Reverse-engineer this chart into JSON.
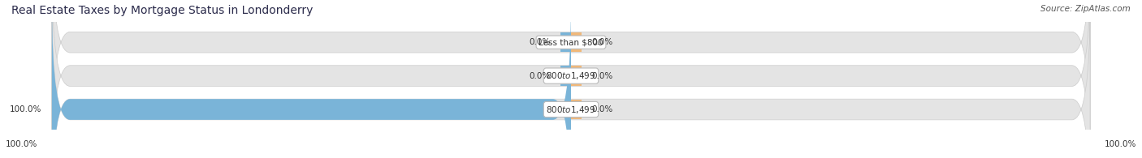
{
  "title": "Real Estate Taxes by Mortgage Status in Londonderry",
  "source": "Source: ZipAtlas.com",
  "categories": [
    "Less than $800",
    "$800 to $1,499",
    "$800 to $1,499"
  ],
  "without_mortgage": [
    0.0,
    0.0,
    100.0
  ],
  "with_mortgage": [
    0.0,
    0.0,
    0.0
  ],
  "color_without": "#7ab4d8",
  "color_with": "#f0b87a",
  "bar_bg_color": "#e4e4e4",
  "bar_height": 0.62,
  "figsize": [
    14.06,
    1.95
  ],
  "dpi": 100,
  "title_fontsize": 10,
  "label_fontsize": 7.5,
  "pct_fontsize": 7.5,
  "legend_fontsize": 8,
  "source_fontsize": 7.5,
  "xlim_abs": 100
}
